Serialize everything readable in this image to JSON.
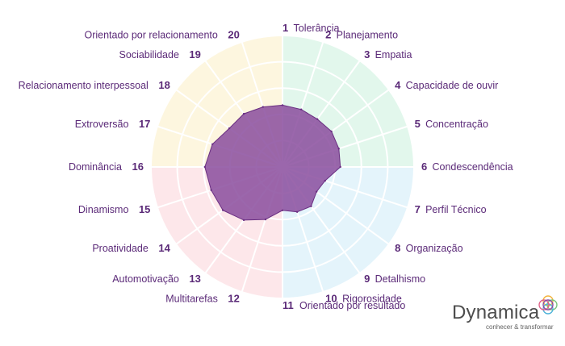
{
  "chart_data": {
    "type": "radar",
    "title": "",
    "scale_max": 10,
    "rings": 5,
    "categories": [
      {
        "n": "1",
        "label": "Tolerância"
      },
      {
        "n": "2",
        "label": "Planejamento"
      },
      {
        "n": "3",
        "label": "Empatia"
      },
      {
        "n": "4",
        "label": "Capacidade de ouvir"
      },
      {
        "n": "5",
        "label": "Concentração"
      },
      {
        "n": "6",
        "label": "Condescendência"
      },
      {
        "n": "7",
        "label": "Perfil Técnico"
      },
      {
        "n": "8",
        "label": "Organização"
      },
      {
        "n": "9",
        "label": "Detalhismo"
      },
      {
        "n": "10",
        "label": "Rigorosidade"
      },
      {
        "n": "11",
        "label": "Orientado por resultado"
      },
      {
        "n": "12",
        "label": "Multitarefas"
      },
      {
        "n": "13",
        "label": "Automotivação"
      },
      {
        "n": "14",
        "label": "Proatividade"
      },
      {
        "n": "15",
        "label": "Dinamismo"
      },
      {
        "n": "16",
        "label": "Dominância"
      },
      {
        "n": "17",
        "label": "Extroversão"
      },
      {
        "n": "18",
        "label": "Relacionamento interpessoal"
      },
      {
        "n": "19",
        "label": "Sociabilidade"
      },
      {
        "n": "20",
        "label": "Orientado por relacionamento"
      }
    ],
    "values": [
      4.7,
      4.6,
      4.5,
      4.6,
      4.5,
      4.4,
      3.4,
      3.2,
      3.7,
      3.6,
      3.3,
      4.2,
      5.0,
      5.6,
      5.7,
      5.9,
      5.6,
      5.0,
      5.0,
      4.8
    ],
    "quadrant_colors": [
      "#e2f7ec",
      "#e4f4fb",
      "#fde7ea",
      "#fdf6df"
    ],
    "series_color": "#8a4c9e"
  },
  "logo": {
    "name": "Dynamica",
    "tagline": "conhecer & transformar"
  }
}
